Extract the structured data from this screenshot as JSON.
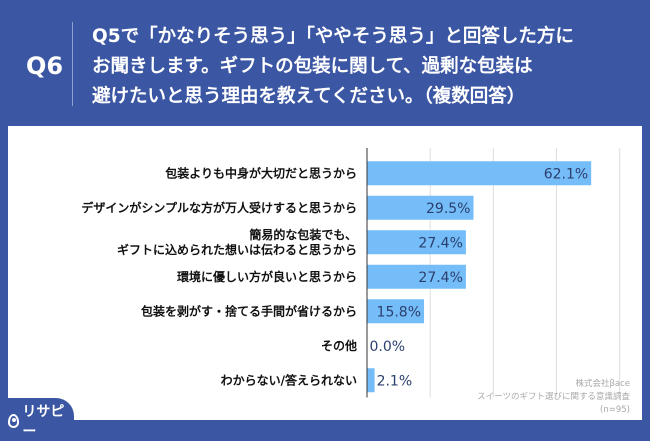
{
  "header": {
    "qnum": "Q6",
    "question": "Q5で「かなりそう思う」「ややそう思う」と回答した方に\nお聞きします。ギフトの包装に関して、過剰な包装は\n避けたいと思う理由を教えてください。（複数回答）"
  },
  "source": {
    "company": "株式会社βace",
    "survey": "スイーツのギフト選びに関する意識調査",
    "n": "(n=95)"
  },
  "logo": {
    "text": "リサピー"
  },
  "colors": {
    "bar": "#74bdf8",
    "background": "#3b56a3"
  },
  "chart_data": {
    "type": "bar",
    "orientation": "horizontal",
    "categories": [
      "包装よりも中身が大切だと思うから",
      "デザインがシンプルな方が万人受けすると思うから",
      "簡易的な包装でも、\nギフトに込められた想いは伝わると思うから",
      "環境に優しい方が良いと思うから",
      "包装を剥がす・捨てる手間が省けるから",
      "その他",
      "わからない/答えられない"
    ],
    "values": [
      62.1,
      29.5,
      27.4,
      27.4,
      15.8,
      0.0,
      2.1
    ],
    "labels": [
      "62.1%",
      "29.5%",
      "27.4%",
      "27.4%",
      "15.8%",
      "0.0%",
      "2.1%"
    ],
    "xlim": [
      0,
      70
    ],
    "grid": true
  }
}
